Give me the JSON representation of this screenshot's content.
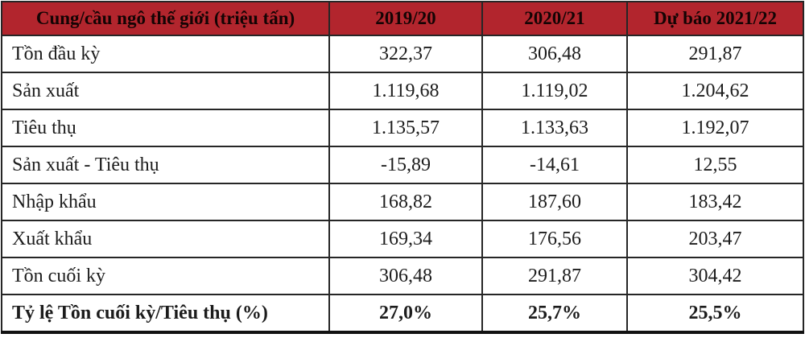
{
  "colors": {
    "header_bg": "#b2252d",
    "header_text": "#140404",
    "cell_text": "#1c1c1c",
    "grid_border": "#262626",
    "header_divider": "#3c0b0e",
    "row_bg": "#ffffff"
  },
  "chart_data": {
    "type": "table",
    "title": "Cung/cầu ngô thế giới (triệu tấn)",
    "columns": [
      "Cung/cầu ngô thế giới (triệu tấn)",
      "2019/20",
      "2020/21",
      "Dự báo 2021/22"
    ],
    "rows": [
      {
        "label": "Tồn đầu kỳ",
        "values": [
          "322,37",
          "306,48",
          "291,87"
        ]
      },
      {
        "label": "Sản xuất",
        "values": [
          "1.119,68",
          "1.119,02",
          "1.204,62"
        ]
      },
      {
        "label": "Tiêu thụ",
        "values": [
          "1.135,57",
          "1.133,63",
          "1.192,07"
        ]
      },
      {
        "label": "Sản xuất - Tiêu thụ",
        "values": [
          "-15,89",
          "-14,61",
          "12,55"
        ]
      },
      {
        "label": "Nhập khẩu",
        "values": [
          "168,82",
          "187,60",
          "183,42"
        ]
      },
      {
        "label": "Xuất khẩu",
        "values": [
          "169,34",
          "176,56",
          "203,47"
        ]
      },
      {
        "label": "Tồn cuối kỳ",
        "values": [
          "306,48",
          "291,87",
          "304,42"
        ]
      },
      {
        "label": "Tỷ lệ Tồn cuối kỳ/Tiêu thụ (%)",
        "values": [
          "27,0%",
          "25,7%",
          "25,5%"
        ]
      }
    ]
  }
}
